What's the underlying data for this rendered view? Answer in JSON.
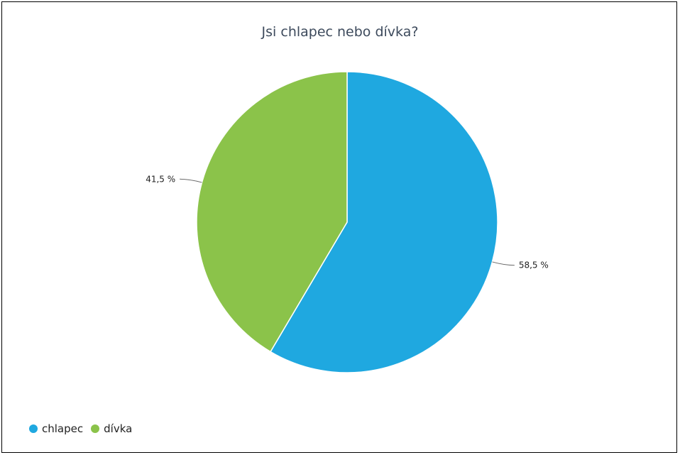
{
  "chart_data": {
    "type": "pie",
    "title": "Jsi chlapec nebo dívka?",
    "categories": [
      "chlapec",
      "dívka"
    ],
    "values": [
      58.5,
      41.5
    ],
    "value_labels": [
      "58,5 %",
      "41,5 %"
    ],
    "colors": [
      "#1fa8e0",
      "#8bc34a"
    ],
    "legend_position": "bottom-left"
  }
}
